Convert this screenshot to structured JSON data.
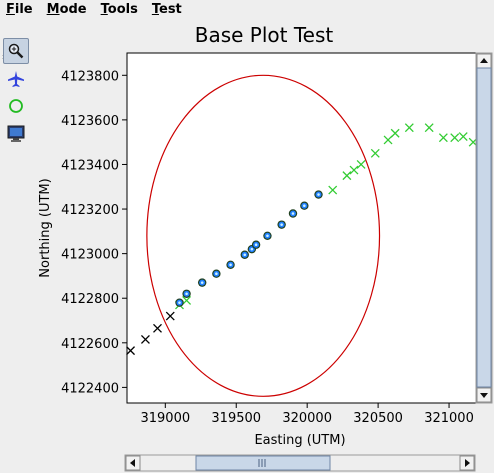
{
  "menu": [
    {
      "name": "file",
      "first": "F",
      "rest": "ile"
    },
    {
      "name": "mode",
      "first": "M",
      "rest": "ode"
    },
    {
      "name": "tools",
      "first": "T",
      "rest": "ools"
    },
    {
      "name": "test",
      "first": "T",
      "rest": "est"
    }
  ],
  "tools": [
    {
      "name": "zoom-tool-icon",
      "active": true
    },
    {
      "name": "airplane-tool-icon",
      "active": false
    },
    {
      "name": "circle-tool-icon",
      "active": false
    },
    {
      "name": "monitor-tool-icon",
      "active": false
    }
  ],
  "colors": {
    "track_black": "#000000",
    "track_green": "#33cc33",
    "marker_fill": "#2080ff",
    "marker_edge": "#204020",
    "ellipse": "#cc0000"
  },
  "chart_data": {
    "type": "scatter",
    "title": "Base Plot Test",
    "xlabel": "Easting (UTM)",
    "ylabel": "Northing (UTM)",
    "xlim": [
      318730,
      321190
    ],
    "ylim": [
      4122330,
      4123900
    ],
    "xticks": [
      319000,
      319500,
      320000,
      320500,
      321000
    ],
    "xticklabels": [
      "319000",
      "319500",
      "320000",
      "320500",
      "321000"
    ],
    "yticks": [
      4122400,
      4122600,
      4122800,
      4123000,
      4123200,
      4123400,
      4123600,
      4123800
    ],
    "yticklabels": [
      "4122400",
      "4122600",
      "4122800",
      "4123000",
      "4123200",
      "4123400",
      "4123600",
      "4123800"
    ],
    "series": [
      {
        "marker": "x",
        "color": "#000000",
        "x": [
          318755,
          318860,
          318945,
          319035
        ],
        "y": [
          4122565,
          4122615,
          4122665,
          4122720
        ]
      },
      {
        "marker": "x",
        "color": "#33cc33",
        "x": [
          319100,
          319150,
          320180,
          320280,
          320330,
          320380,
          320480,
          320570,
          320620,
          320720,
          320860,
          320960,
          321040,
          321100,
          321170
        ],
        "y": [
          4122770,
          4122790,
          4123285,
          4123350,
          4123375,
          4123400,
          4123450,
          4123510,
          4123540,
          4123565,
          4123565,
          4123520,
          4123520,
          4123525,
          4123500
        ]
      },
      {
        "marker": "circle",
        "color": "#2080ff",
        "x": [
          319100,
          319150,
          319260,
          319360,
          319460,
          319560,
          319610,
          319640,
          319720,
          319820,
          319900,
          319980,
          320080
        ],
        "y": [
          4122780,
          4122820,
          4122870,
          4122910,
          4122950,
          4122995,
          4123020,
          4123040,
          4123080,
          4123130,
          4123180,
          4123215,
          4123265
        ]
      }
    ],
    "ellipse": {
      "cx": 319690,
      "cy": 4123080,
      "rx": 820,
      "ry": 720,
      "color": "#cc0000"
    },
    "grid": false
  }
}
